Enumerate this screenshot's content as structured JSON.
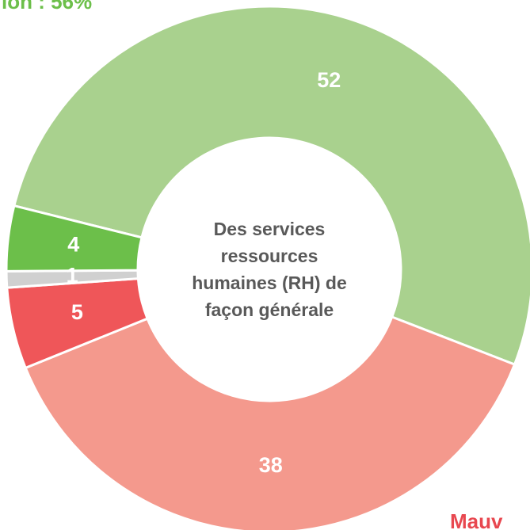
{
  "chart_data": {
    "type": "donut",
    "center_label": "Des services ressources humaines (RH) de façon générale",
    "values": [
      52,
      38,
      5,
      1,
      4
    ],
    "colors": [
      "#a9d18e",
      "#f4998d",
      "#ef5659",
      "#d0d0d0",
      "#6cbf4a"
    ],
    "annotations": [
      {
        "text": "ion : 56%",
        "color": "#6cbf4a"
      },
      {
        "text": "Mauv",
        "color": "#e8474f"
      }
    ]
  }
}
